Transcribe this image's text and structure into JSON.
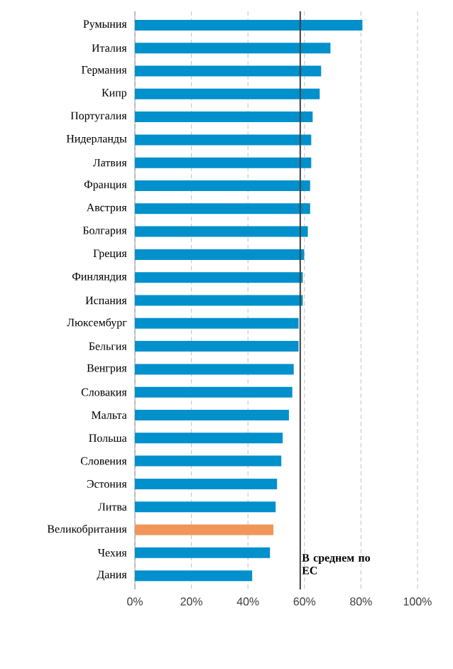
{
  "chart_data": {
    "type": "bar",
    "orientation": "horizontal",
    "categories": [
      "Румыния",
      "Италия",
      "Германия",
      "Кипр",
      "Португалия",
      "Нидерланды",
      "Латвия",
      "Франция",
      "Австрия",
      "Болгария",
      "Греция",
      "Финляндия",
      "Испания",
      "Люксембург",
      "Бельгия",
      "Венгрия",
      "Словакия",
      "Мальта",
      "Польша",
      "Словения",
      "Эстония",
      "Литва",
      "Великобритания",
      "Чехия",
      "Дания"
    ],
    "values": [
      80.5,
      69.2,
      65.9,
      65.4,
      62.9,
      62.4,
      62.4,
      62.0,
      62.0,
      61.2,
      59.9,
      59.4,
      59.4,
      57.9,
      57.9,
      56.2,
      55.7,
      54.5,
      52.3,
      51.8,
      50.3,
      49.8,
      49.0,
      47.8,
      41.5
    ],
    "colors": [
      "#0090cc",
      "#0090cc",
      "#0090cc",
      "#0090cc",
      "#0090cc",
      "#0090cc",
      "#0090cc",
      "#0090cc",
      "#0090cc",
      "#0090cc",
      "#0090cc",
      "#0090cc",
      "#0090cc",
      "#0090cc",
      "#0090cc",
      "#0090cc",
      "#0090cc",
      "#0090cc",
      "#0090cc",
      "#0090cc",
      "#0090cc",
      "#0090cc",
      "#f0965a",
      "#0090cc",
      "#0090cc"
    ],
    "xlim": [
      0,
      100
    ],
    "xticks": [
      {
        "value": 0,
        "label": "0%"
      },
      {
        "value": 20,
        "label": "20%"
      },
      {
        "value": 40,
        "label": "40%"
      },
      {
        "value": 60,
        "label": "60%"
      },
      {
        "value": 80,
        "label": "80%"
      },
      {
        "value": 100,
        "label": "100%"
      }
    ],
    "grid": "x",
    "ref_lines": [
      {
        "axis": "x",
        "value": 58.5,
        "label": "В среднем по ЕС",
        "color": "#404040"
      }
    ]
  }
}
